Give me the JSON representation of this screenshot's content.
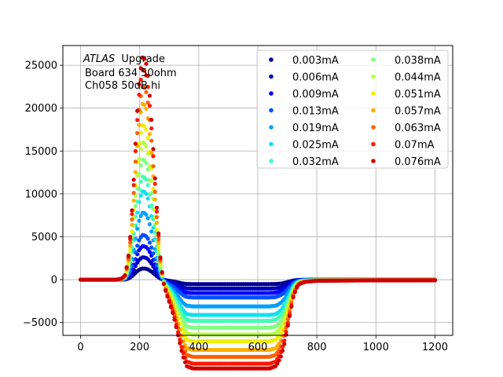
{
  "chart_data": {
    "type": "scatter",
    "title": "",
    "xlabel": "",
    "ylabel": "",
    "xlim": [
      -60,
      1260
    ],
    "ylim": [
      -6500,
      27300
    ],
    "xticks": [
      0,
      200,
      400,
      600,
      800,
      1000,
      1200
    ],
    "yticks": [
      -5000,
      0,
      5000,
      10000,
      15000,
      20000,
      25000
    ],
    "xtick_labels": [
      "0",
      "200",
      "400",
      "600",
      "800",
      "1000",
      "1200"
    ],
    "ytick_labels": [
      "−5000",
      "0",
      "5000",
      "10000",
      "15000",
      "20000",
      "25000"
    ],
    "grid": true,
    "legend_position": "top-right",
    "legend_columns": 2,
    "annotation": {
      "italic_part": "ATLAS",
      "rest": "Upgrade",
      "line2": "Board 634 50ohm",
      "line3": "Ch058 50dB hi"
    },
    "x": [
      0,
      60,
      120,
      140,
      150,
      160,
      170,
      180,
      190,
      200,
      210,
      220,
      230,
      240,
      250,
      260,
      270,
      280,
      290,
      300,
      310,
      320,
      330,
      340,
      350,
      360,
      380,
      400,
      450,
      500,
      550,
      600,
      640,
      660,
      670,
      680,
      690,
      700,
      710,
      720,
      730,
      740,
      760,
      800,
      900,
      1000,
      1100,
      1200
    ],
    "shape": [
      0,
      0,
      0,
      0.005,
      0.02,
      0.08,
      0.22,
      0.45,
      0.72,
      0.92,
      1.0,
      0.99,
      0.9,
      0.72,
      0.5,
      0.28,
      0.1,
      -0.01,
      -0.06,
      -0.1,
      -0.14,
      -0.19,
      -0.25,
      -0.31,
      -0.36,
      -0.39,
      -0.4,
      -0.4,
      -0.4,
      -0.4,
      -0.4,
      -0.4,
      -0.4,
      -0.39,
      -0.37,
      -0.34,
      -0.29,
      -0.22,
      -0.15,
      -0.08,
      -0.04,
      -0.02,
      -0.01,
      -0.005,
      -0.004,
      -0.003,
      -0.003,
      -0.003
    ],
    "series": [
      {
        "name": "0.003mA",
        "color": "#00008f",
        "peak": 1300
      },
      {
        "name": "0.006mA",
        "color": "#0000bb",
        "peak": 2600
      },
      {
        "name": "0.009mA",
        "color": "#0000ff",
        "peak": 3900
      },
      {
        "name": "0.013mA",
        "color": "#0050ff",
        "peak": 5200
      },
      {
        "name": "0.019mA",
        "color": "#00a0ff",
        "peak": 7800
      },
      {
        "name": "0.025mA",
        "color": "#10e0f0",
        "peak": 10300
      },
      {
        "name": "0.032mA",
        "color": "#40ffb7",
        "peak": 12000
      },
      {
        "name": "0.038mA",
        "color": "#80ff80",
        "peak": 14000
      },
      {
        "name": "0.044mA",
        "color": "#b7ff40",
        "peak": 16000
      },
      {
        "name": "0.051mA",
        "color": "#f0f000",
        "peak": 18000
      },
      {
        "name": "0.057mA",
        "color": "#ffb000",
        "peak": 20500
      },
      {
        "name": "0.063mA",
        "color": "#ff6000",
        "peak": 22500
      },
      {
        "name": "0.07mA",
        "color": "#ff1a00",
        "peak": 24500
      },
      {
        "name": "0.076mA",
        "color": "#cc0000",
        "peak": 25900
      }
    ]
  }
}
